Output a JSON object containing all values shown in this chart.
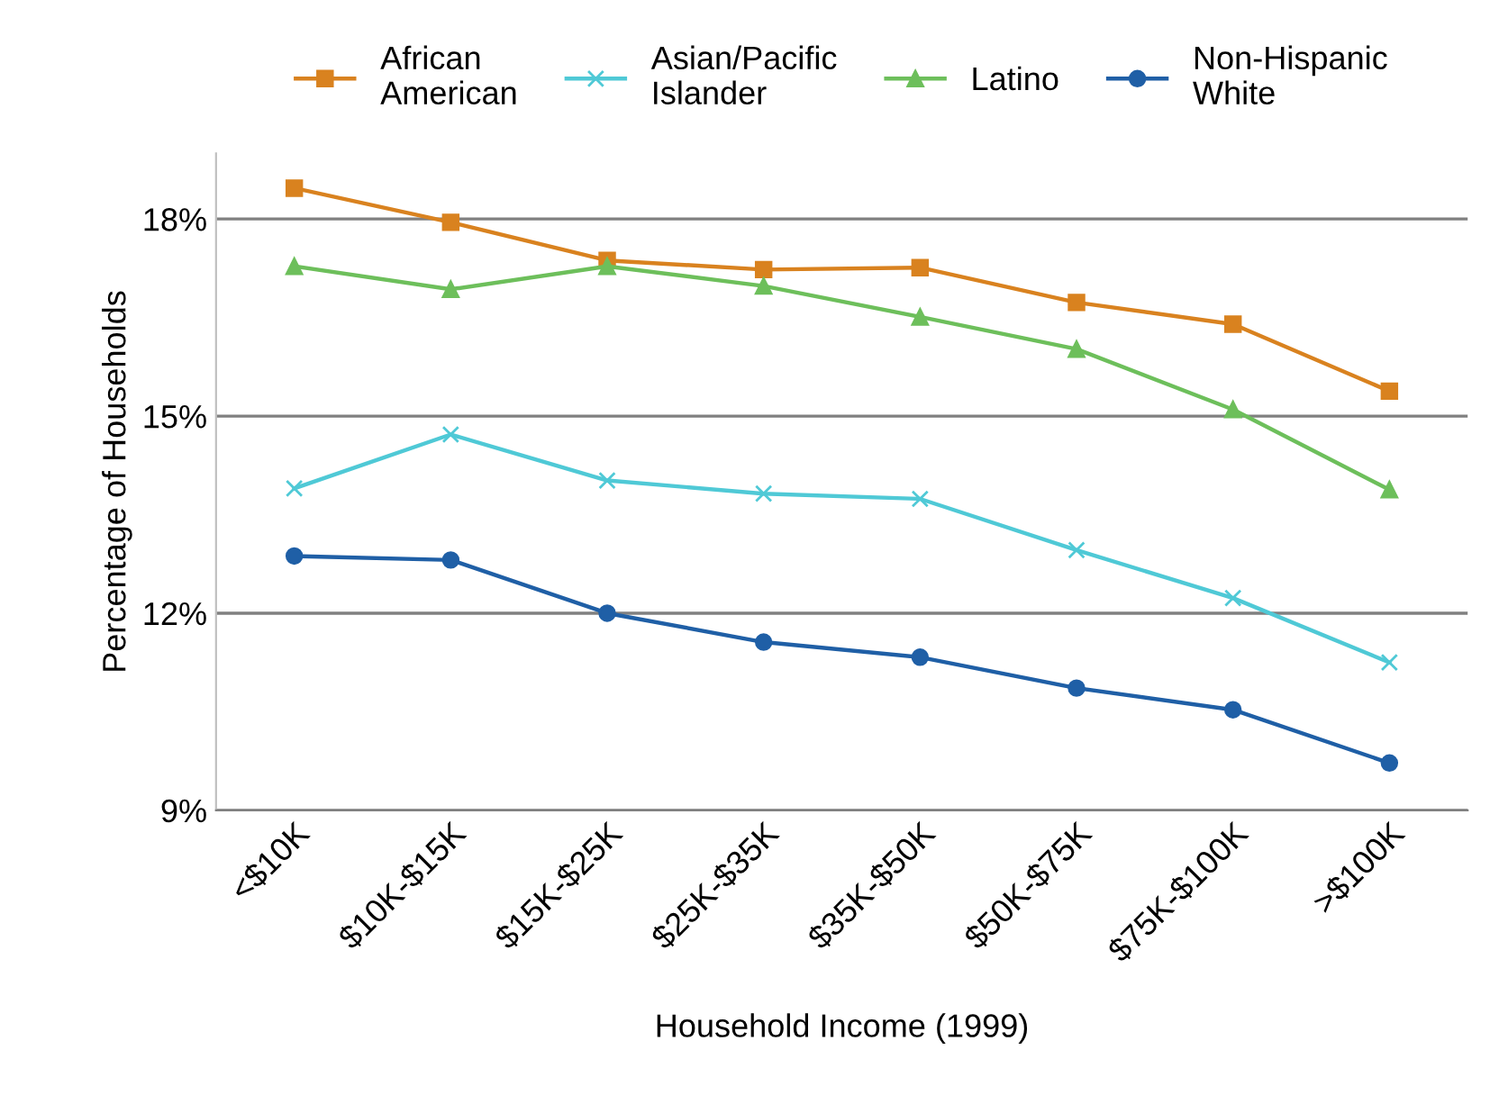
{
  "chart_data": {
    "type": "line",
    "xlabel": "Household Income (1999)",
    "ylabel": "Percentage of Households",
    "categories": [
      "<$10K",
      "$10K-$15K",
      "$15K-$25K",
      "$25K-$35K",
      "$35K-$50K",
      "$50K-$75K",
      "$75K-$100K",
      ">$100K"
    ],
    "series": [
      {
        "name": "African\nAmerican",
        "color": "#d9821f",
        "marker": "square",
        "values": [
          18.47,
          17.95,
          17.37,
          17.23,
          17.26,
          16.73,
          16.4,
          15.38
        ]
      },
      {
        "name": "Asian/Pacific\nIslander",
        "color": "#4fc9d6",
        "marker": "cross",
        "values": [
          13.9,
          14.72,
          14.02,
          13.82,
          13.74,
          12.96,
          12.23,
          11.25
        ]
      },
      {
        "name": "Latino",
        "color": "#6dbf5b",
        "marker": "triangle",
        "values": [
          17.28,
          16.93,
          17.28,
          16.98,
          16.51,
          16.02,
          15.1,
          13.88
        ]
      },
      {
        "name": "Non-Hispanic\nWhite",
        "color": "#1f5fa6",
        "marker": "circle",
        "values": [
          12.87,
          12.81,
          12.0,
          11.56,
          11.33,
          10.86,
          10.53,
          9.72
        ]
      }
    ],
    "ylim": [
      9,
      19
    ],
    "yticks": [
      {
        "value": 9,
        "label": "9%"
      },
      {
        "value": 12,
        "label": "12%"
      },
      {
        "value": 15,
        "label": "15%"
      },
      {
        "value": 18,
        "label": "18%"
      }
    ],
    "grid": "y",
    "legend": "top"
  }
}
